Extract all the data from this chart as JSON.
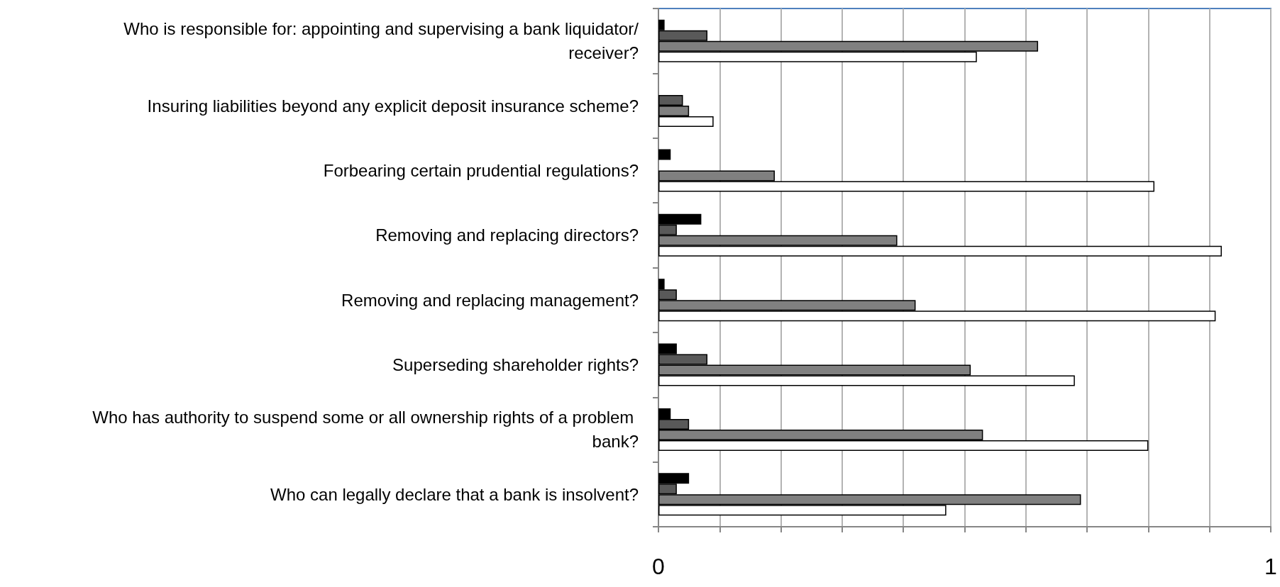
{
  "chart_data": {
    "type": "bar",
    "orientation": "horizontal",
    "categories": [
      "Who is responsible for: appointing and supervising a bank liquidator/receiver?",
      "Insuring liabilities beyond any explicit deposit insurance scheme?",
      "Forbearing certain prudential regulations?",
      "Removing and replacing directors?",
      "Removing and replacing management?",
      "Superseding shareholder rights?",
      "Who has authority to suspend some or all ownership rights of a problem bank?",
      "Who can legally declare that a bank is insolvent?"
    ],
    "series": [
      {
        "color": "#000000",
        "values": [
          0.01,
          null,
          0.02,
          0.07,
          0.01,
          0.03,
          0.02,
          0.05
        ]
      },
      {
        "color": "#595959",
        "values": [
          0.08,
          0.04,
          null,
          0.03,
          0.03,
          0.08,
          0.05,
          0.03
        ]
      },
      {
        "color": "#808080",
        "values": [
          0.62,
          0.05,
          0.19,
          0.39,
          0.42,
          0.51,
          0.53,
          0.69
        ]
      },
      {
        "color": "#ffffff",
        "values": [
          0.52,
          0.09,
          0.81,
          0.92,
          0.91,
          0.68,
          0.8,
          0.47
        ]
      }
    ],
    "xlim": [
      0,
      1
    ],
    "xticks": [
      0,
      {
        "value": 0.1,
        "label": null
      },
      {
        "value": 0.2,
        "label": null
      },
      {
        "value": 0.3,
        "label": null
      },
      {
        "value": 0.4,
        "label": null
      },
      {
        "value": 0.5,
        "label": null
      },
      {
        "value": 0.6,
        "label": null
      },
      {
        "value": 0.7,
        "label": null
      },
      {
        "value": 0.8,
        "label": null
      },
      {
        "value": 0.9,
        "label": null
      },
      1
    ],
    "grid": "x"
  }
}
